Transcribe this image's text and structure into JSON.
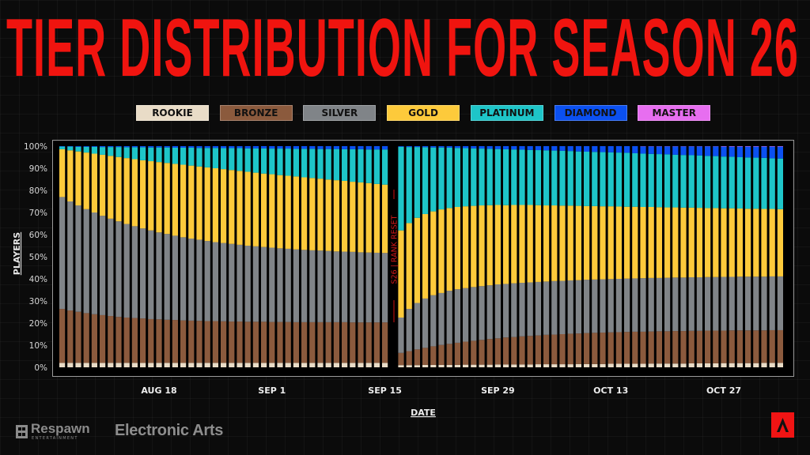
{
  "title": "TIER DISTRIBUTION FOR SEASON 26",
  "logos": {
    "respawn": "Respawn",
    "respawn_sub": "ENTERTAINMENT",
    "ea": "Electronic Arts",
    "apex": "Apex Legends"
  },
  "chart_data": {
    "type": "bar",
    "stacked": true,
    "xlabel": "DATE",
    "ylabel": "PLAYERS",
    "ylim": [
      0,
      100
    ],
    "y_ticks": [
      "0%",
      "10%",
      "20%",
      "30%",
      "40%",
      "50%",
      "60%",
      "70%",
      "80%",
      "90%",
      "100%"
    ],
    "x_ticks": [
      "AUG 18",
      "SEP 1",
      "SEP 15",
      "SEP 29",
      "OCT 13",
      "OCT 27"
    ],
    "legend_position": "top",
    "annotation": "S26 | RANK RESET",
    "tiers": [
      {
        "name": "ROOKIE",
        "color": "#e9dcc7"
      },
      {
        "name": "BRONZE",
        "color": "#8b5a3d"
      },
      {
        "name": "SILVER",
        "color": "#808488"
      },
      {
        "name": "GOLD",
        "color": "#fdca3b"
      },
      {
        "name": "PLATINUM",
        "color": "#1ec5c8"
      },
      {
        "name": "DIAMOND",
        "color": "#0b50f0"
      },
      {
        "name": "MASTER",
        "color": "#e76ef0"
      }
    ],
    "segments": [
      {
        "first_date": "Aug 6",
        "last_date": "Sep 15",
        "series": {
          "ROOKIE": [
            2,
            2,
            2,
            2,
            2,
            2,
            2,
            2,
            2,
            2,
            2,
            2,
            2,
            2,
            2,
            2,
            2,
            2,
            2,
            2,
            2,
            2,
            2,
            2,
            2,
            2,
            2,
            2,
            2,
            2,
            2,
            2,
            2,
            2,
            2,
            2,
            2,
            2,
            2,
            2,
            2
          ],
          "BRONZE": [
            24.4,
            23.7,
            23.1,
            22.5,
            22.0,
            21.6,
            21.2,
            20.8,
            20.5,
            20.3,
            20.1,
            19.8,
            19.7,
            19.5,
            19.4,
            19.2,
            19.1,
            19.0,
            18.9,
            18.9,
            18.8,
            18.7,
            18.7,
            18.6,
            18.6,
            18.6,
            18.5,
            18.5,
            18.5,
            18.4,
            18.4,
            18.4,
            18.4,
            18.4,
            18.4,
            18.4,
            18.3,
            18.3,
            18.3,
            18.3,
            18.3
          ],
          "SILVER": [
            50.6,
            49.3,
            48.1,
            47.0,
            46.0,
            44.9,
            44.0,
            43.2,
            42.3,
            41.5,
            40.7,
            40.1,
            39.3,
            38.8,
            38.1,
            37.6,
            37.1,
            36.7,
            36.2,
            35.7,
            35.4,
            35.1,
            34.7,
            34.4,
            34.1,
            33.8,
            33.6,
            33.3,
            33.1,
            32.9,
            32.7,
            32.5,
            32.4,
            32.2,
            32.0,
            31.9,
            31.9,
            31.7,
            31.6,
            31.5,
            31.4
          ],
          "GOLD": [
            21.6,
            23.1,
            24.4,
            25.6,
            26.6,
            27.6,
            28.4,
            29.1,
            29.8,
            30.3,
            30.8,
            31.3,
            31.8,
            32.1,
            32.5,
            32.8,
            33.0,
            33.1,
            33.3,
            33.4,
            33.4,
            33.4,
            33.4,
            33.4,
            33.3,
            33.2,
            33.2,
            33.1,
            33.0,
            33.0,
            32.8,
            32.7,
            32.5,
            32.3,
            32.2,
            32.0,
            31.7,
            31.6,
            31.4,
            31.1,
            30.9
          ],
          "PLATINUM": [
            1.2,
            1.7,
            2.1,
            2.6,
            3.1,
            3.5,
            4.0,
            4.5,
            4.9,
            5.4,
            5.9,
            6.2,
            6.6,
            7.0,
            7.3,
            7.7,
            8.1,
            8.4,
            8.8,
            9.2,
            9.5,
            9.9,
            10.3,
            10.6,
            11.0,
            11.4,
            11.6,
            12.0,
            12.3,
            12.5,
            12.9,
            13.2,
            13.4,
            13.8,
            14.1,
            14.3,
            14.7,
            15.0,
            15.2,
            15.6,
            15.9
          ],
          "DIAMOND": [
            0.2,
            0.2,
            0.3,
            0.3,
            0.3,
            0.4,
            0.4,
            0.4,
            0.5,
            0.5,
            0.5,
            0.6,
            0.6,
            0.6,
            0.7,
            0.7,
            0.7,
            0.8,
            0.8,
            0.8,
            0.9,
            0.9,
            0.9,
            1.0,
            1.0,
            1.0,
            1.1,
            1.1,
            1.1,
            1.2,
            1.2,
            1.2,
            1.3,
            1.3,
            1.3,
            1.4,
            1.4,
            1.4,
            1.5,
            1.5,
            1.5
          ],
          "MASTER": [
            0,
            0,
            0,
            0,
            0,
            0,
            0,
            0,
            0,
            0,
            0,
            0,
            0,
            0,
            0,
            0,
            0,
            0,
            0,
            0,
            0,
            0,
            0,
            0,
            0,
            0,
            0,
            0,
            0,
            0,
            0,
            0,
            0,
            0,
            0,
            0,
            0,
            0,
            0,
            0,
            0
          ]
        }
      },
      {
        "first_date": "Sep 17",
        "last_date": "Nov 3",
        "series": {
          "ROOKIE": [
            1.0,
            1.0,
            1.0,
            1.1,
            1.1,
            1.1,
            1.1,
            1.1,
            1.2,
            1.2,
            1.2,
            1.2,
            1.3,
            1.3,
            1.3,
            1.3,
            1.3,
            1.4,
            1.4,
            1.4,
            1.4,
            1.4,
            1.5,
            1.5,
            1.5,
            1.5,
            1.6,
            1.6,
            1.6,
            1.6,
            1.6,
            1.7,
            1.7,
            1.7,
            1.7,
            1.7,
            1.8,
            1.8,
            1.8,
            1.8,
            1.9,
            1.9,
            1.9,
            1.9,
            1.9,
            2.0,
            2.0,
            2.0
          ],
          "BRONZE": [
            5.5,
            6.3,
            7.1,
            7.7,
            8.4,
            9.0,
            9.5,
            10.0,
            10.4,
            10.8,
            11.2,
            11.6,
            11.8,
            12.2,
            12.4,
            12.7,
            12.9,
            13.0,
            13.3,
            13.4,
            13.6,
            13.8,
            13.8,
            14.0,
            14.1,
            14.2,
            14.2,
            14.3,
            14.4,
            14.5,
            14.5,
            14.5,
            14.6,
            14.6,
            14.7,
            14.7,
            14.7,
            14.7,
            14.8,
            14.8,
            14.7,
            14.8,
            14.8,
            14.8,
            14.8,
            14.7,
            14.8,
            14.8
          ],
          "SILVER": [
            16.0,
            19.1,
            21.0,
            22.3,
            23.1,
            23.5,
            24.0,
            24.2,
            24.2,
            24.3,
            24.3,
            24.3,
            24.4,
            24.2,
            24.3,
            24.2,
            24.2,
            24.2,
            24.1,
            24.2,
            24.1,
            24.1,
            24.1,
            24.1,
            24.1,
            24.1,
            24.1,
            24.1,
            24.1,
            24.1,
            24.2,
            24.2,
            24.1,
            24.2,
            24.2,
            24.2,
            24.2,
            24.2,
            24.2,
            24.2,
            24.3,
            24.2,
            24.3,
            24.3,
            24.3,
            24.3,
            24.3,
            24.3
          ],
          "GOLD": [
            39.4,
            38.8,
            38.5,
            38.2,
            37.9,
            37.8,
            37.4,
            37.2,
            37.0,
            36.7,
            36.5,
            36.2,
            35.9,
            35.6,
            35.4,
            35.2,
            35.0,
            34.7,
            34.4,
            34.2,
            34.0,
            33.8,
            33.6,
            33.3,
            33.2,
            33.0,
            32.9,
            32.7,
            32.5,
            32.4,
            32.2,
            32.1,
            32.0,
            31.8,
            31.7,
            31.6,
            31.5,
            31.4,
            31.2,
            31.2,
            31.0,
            31.0,
            30.8,
            30.7,
            30.7,
            30.6,
            30.5,
            30.4
          ],
          "PLATINUM": [
            37.8,
            34.4,
            32.0,
            30.2,
            28.9,
            28.0,
            27.3,
            26.7,
            26.3,
            26.0,
            25.7,
            25.5,
            25.3,
            25.3,
            25.1,
            25.0,
            24.9,
            24.9,
            24.9,
            24.8,
            24.8,
            24.7,
            24.6,
            24.6,
            24.5,
            24.5,
            24.4,
            24.4,
            24.4,
            24.2,
            24.1,
            24.0,
            24.0,
            24.0,
            23.8,
            23.8,
            23.7,
            23.7,
            23.6,
            23.5,
            23.4,
            23.3,
            23.2,
            23.2,
            23.1,
            23.1,
            22.9,
            22.9
          ],
          "DIAMOND": [
            0.3,
            0.4,
            0.4,
            0.5,
            0.6,
            0.6,
            0.7,
            0.8,
            0.9,
            1.0,
            1.1,
            1.2,
            1.3,
            1.4,
            1.5,
            1.6,
            1.7,
            1.8,
            1.9,
            2.0,
            2.1,
            2.2,
            2.4,
            2.5,
            2.6,
            2.7,
            2.8,
            2.9,
            3.0,
            3.2,
            3.3,
            3.4,
            3.5,
            3.6,
            3.8,
            3.9,
            4.0,
            4.1,
            4.3,
            4.4,
            4.5,
            4.6,
            4.8,
            4.9,
            5.0,
            5.1,
            5.3,
            5.4
          ],
          "MASTER": [
            0,
            0,
            0,
            0,
            0,
            0,
            0,
            0,
            0,
            0,
            0,
            0,
            0,
            0,
            0,
            0,
            0,
            0,
            0,
            0,
            0,
            0,
            0,
            0,
            0,
            0,
            0,
            0,
            0,
            0,
            0.1,
            0.1,
            0.1,
            0.1,
            0.1,
            0.1,
            0.1,
            0.1,
            0.1,
            0.1,
            0.2,
            0.2,
            0.2,
            0.2,
            0.2,
            0.2,
            0.2,
            0.2
          ]
        }
      }
    ]
  }
}
